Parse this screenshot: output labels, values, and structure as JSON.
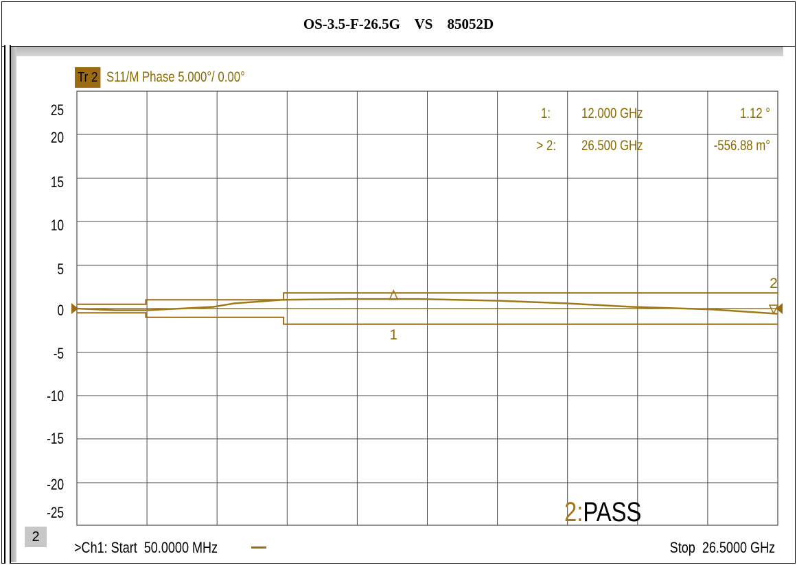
{
  "title": "OS-3.5-F-26.5G    VS    85052D",
  "trace": {
    "badge": "Tr 2",
    "label": "S11/M Phase 5.000°/ 0.00°"
  },
  "channel": {
    "number": "2",
    "start": ">Ch1: Start  50.0000 MHz",
    "stop": "Stop  26.5000 GHz"
  },
  "markers": [
    {
      "id": "1:",
      "freq": "12.000  GHz",
      "value": "1.12 °"
    },
    {
      "id": "> 2:",
      "freq": "26.500  GHz",
      "value": "-556.88 m°"
    }
  ],
  "pass_text": {
    "num": "2:",
    "word": "PASS"
  },
  "colors": {
    "trace": "#a07818",
    "limit": "#9c6b12",
    "grid": "#4a4a4a",
    "badge": "#9c6b12"
  },
  "chart_data": {
    "type": "line",
    "title": "OS-3.5-F-26.5G    VS    85052D",
    "xlabel": "",
    "ylabel": "",
    "xlim": [
      0.05,
      26.5
    ],
    "ylim": [
      -25,
      25
    ],
    "yticks": [
      25,
      20,
      15,
      10,
      5,
      0,
      -5,
      -10,
      -15,
      -20,
      -25
    ],
    "ytick_labels": [
      "25",
      "20",
      "15",
      "10",
      "5",
      "0",
      "-5",
      "-10",
      "-15",
      "-20",
      "-25"
    ],
    "grid": true,
    "series": [
      {
        "x": [
          0.05,
          1.5,
          2.7,
          5.2,
          5.4,
          6.0,
          7.8,
          10.5,
          13.0,
          16.0,
          18.5,
          21.0,
          24.0,
          26.5
        ],
        "values": [
          0.0,
          -0.2,
          -0.2,
          0.2,
          0.3,
          0.6,
          1.0,
          1.1,
          1.1,
          0.9,
          0.6,
          0.2,
          -0.1,
          -0.6
        ]
      }
    ],
    "limit_lines": [
      {
        "x": [
          0.05,
          2.65,
          2.65,
          7.85,
          7.85,
          26.5
        ],
        "values": [
          0.5,
          0.5,
          1.0,
          1.0,
          1.8,
          1.8
        ]
      },
      {
        "x": [
          0.05,
          2.65,
          2.65,
          7.85,
          7.85,
          26.5
        ],
        "values": [
          -0.5,
          -0.5,
          -1.0,
          -1.0,
          -1.8,
          -1.8
        ]
      }
    ],
    "markers": [
      {
        "label": "1",
        "x": 12.0,
        "y": 1.12
      },
      {
        "label": "2",
        "x": 26.5,
        "y": -0.557
      }
    ]
  }
}
